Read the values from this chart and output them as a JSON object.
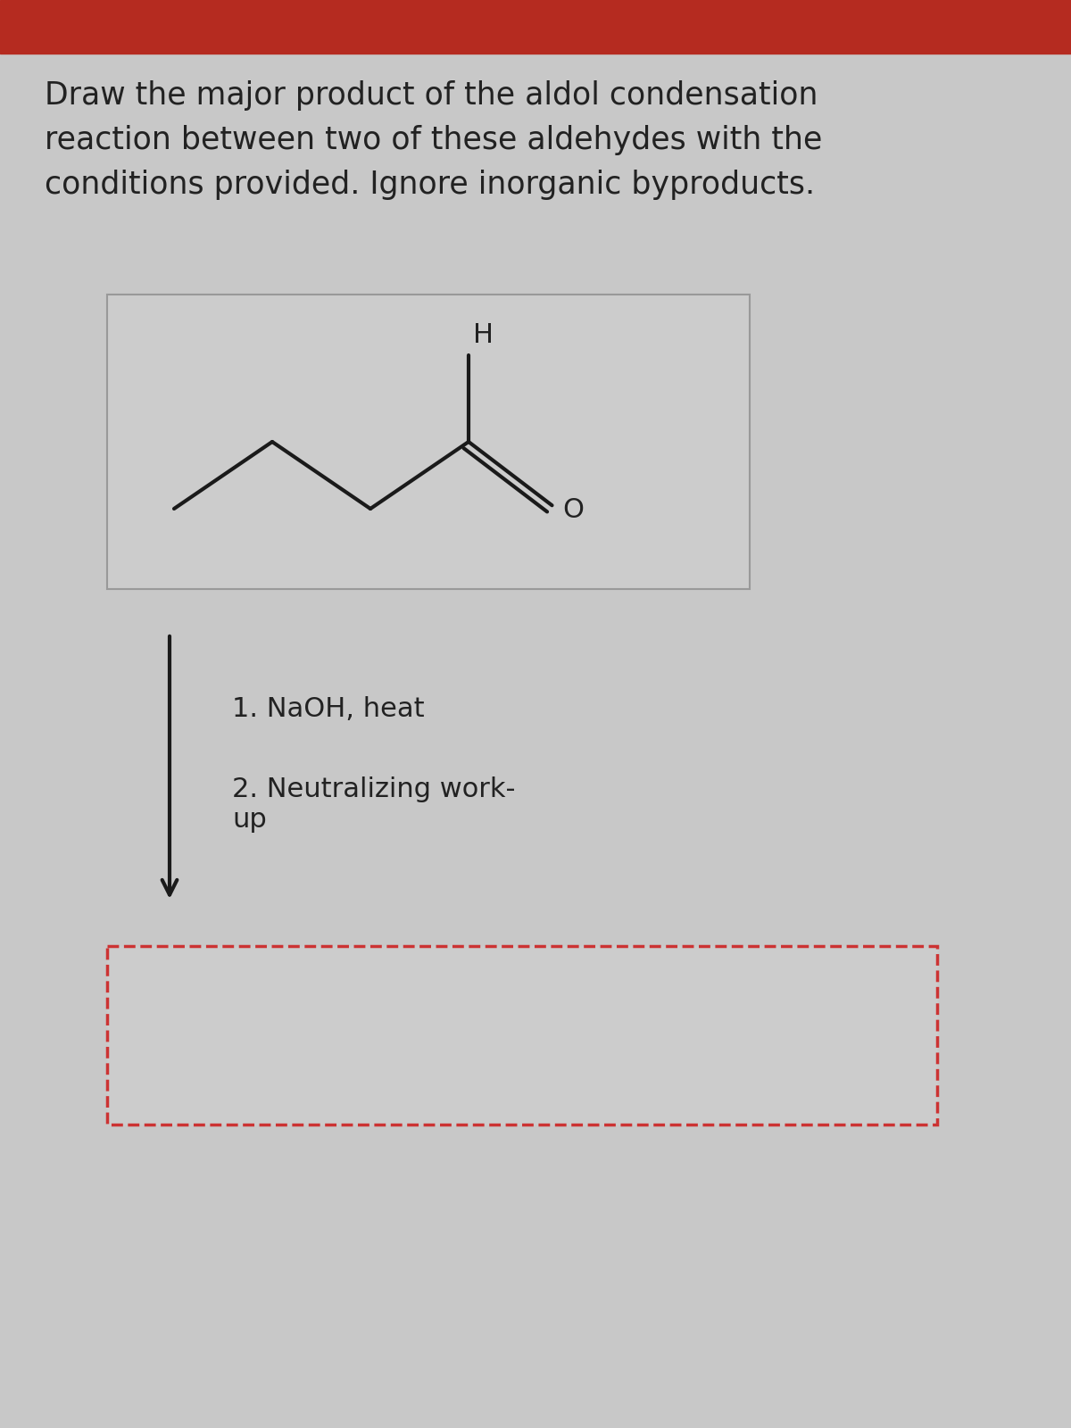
{
  "title_text": "Draw the major product of the aldol condensation\nreaction between two of these aldehydes with the\nconditions provided. Ignore inorganic byproducts.",
  "header_color": "#b52b20",
  "bg_color": "#c8c8c8",
  "mol_box_color": "#cccccc",
  "mol_box_edge": "#999999",
  "answer_box_edge": "#cc3333",
  "font_color": "#222222",
  "bond_color": "#1a1a1a",
  "title_fontsize": 25,
  "label_fontsize": 22,
  "conditions_fontsize": 22,
  "step1_text": "1. NaOH, heat",
  "step2_text": "2. Neutralizing work-\nup"
}
